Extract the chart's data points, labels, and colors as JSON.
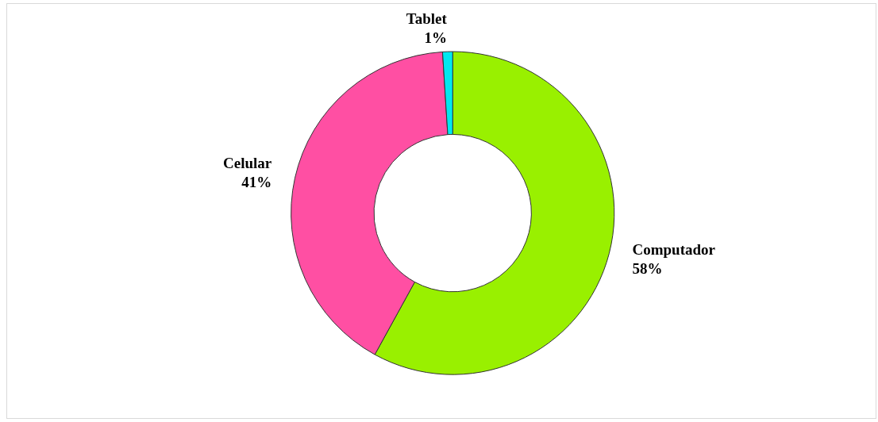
{
  "chart_data": {
    "type": "donut",
    "categories": [
      "Computador",
      "Celular",
      "Tablet"
    ],
    "values": [
      58,
      41,
      1
    ],
    "colors": [
      "#99f000",
      "#ff4fa3",
      "#00e8f0"
    ],
    "value_labels": [
      "58%",
      "41%",
      "1%"
    ],
    "legend": false
  }
}
